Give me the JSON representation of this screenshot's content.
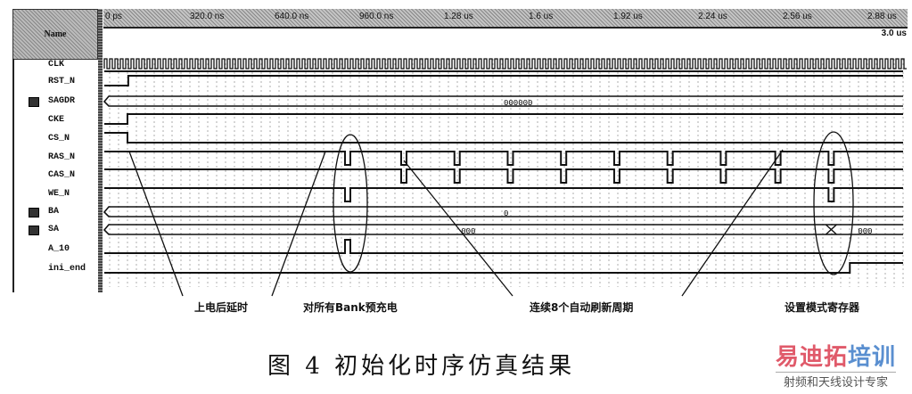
{
  "name_header": "Name",
  "time_ticks": [
    "0 ps",
    "320.0 ns",
    "640.0 ns",
    "960.0 ns",
    "1.28 us",
    "1.6 us",
    "1.92 us",
    "2.24 us",
    "2.56 us",
    "2.88 us"
  ],
  "cursor_time": "3.0 us",
  "time_range_us": [
    0,
    3.0
  ],
  "signals": [
    {
      "name": "CLK",
      "type": "clock"
    },
    {
      "name": "RST_N",
      "type": "bit",
      "initial": 0,
      "edges_us": [
        0.09
      ]
    },
    {
      "name": "SAGDR",
      "type": "bus",
      "bus_icon": true,
      "value": "000000",
      "value_at_us": 1.5
    },
    {
      "name": "CKE",
      "type": "bit",
      "initial": 0,
      "edges_us": [
        0.087
      ]
    },
    {
      "name": "CS_N",
      "type": "bit",
      "initial": 1,
      "edges_us": [
        0.087
      ]
    },
    {
      "name": "RAS_N",
      "type": "bit",
      "initial": 1,
      "pulses_us": [
        0.914,
        1.125,
        1.325,
        1.525,
        1.725,
        1.925,
        2.125,
        2.325,
        2.53,
        2.73
      ]
    },
    {
      "name": "CAS_N",
      "type": "bit",
      "initial": 1,
      "pulses_us": [
        1.125,
        1.325,
        1.525,
        1.725,
        1.925,
        2.125,
        2.325,
        2.53,
        2.73
      ]
    },
    {
      "name": "WE_N",
      "type": "bit",
      "initial": 1,
      "pulses_us": [
        0.914,
        2.73
      ]
    },
    {
      "name": "BA",
      "type": "bus",
      "bus_icon": true,
      "value": "0",
      "value_at_us": 1.5
    },
    {
      "name": "SA",
      "type": "bus",
      "bus_icon": true,
      "value": "000",
      "value_at_us": 1.34,
      "transition_us": 2.73,
      "value_after": "000"
    },
    {
      "name": "A_10",
      "type": "bit",
      "initial": 0,
      "pulses_us": [
        0.914
      ],
      "pulse_high": true
    },
    {
      "name": "ini_end",
      "type": "bit",
      "initial": 0,
      "edges_us": [
        2.8
      ]
    }
  ],
  "annotations": [
    {
      "label": "上电后延时"
    },
    {
      "label": "对所有Bank预充电"
    },
    {
      "label": "连续8个自动刷新周期"
    },
    {
      "label": "设置模式寄存器"
    }
  ],
  "caption": "图 4   初始化时序仿真结果",
  "watermark": {
    "brand_red": "易迪拓",
    "brand_blue": "培训",
    "tagline": "射频和天线设计专家",
    "red": "#e05a6a",
    "blue": "#5a8fd0"
  }
}
